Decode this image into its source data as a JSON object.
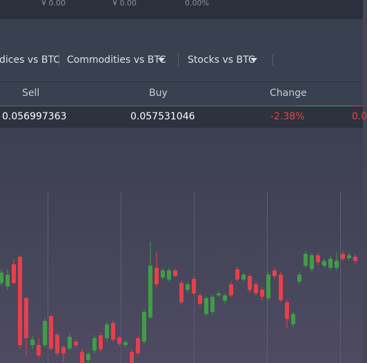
{
  "top_bar": {
    "values": [
      "¥ 0.00",
      "¥ 0.00",
      "0.00%"
    ]
  },
  "tabs": [
    "dices vs BTC",
    "Commodities vs BTC",
    "Stocks vs BTC"
  ],
  "table": {
    "headers": [
      "Sell",
      "Buy",
      "Change"
    ],
    "row": [
      "0.056997363",
      "0.057531046",
      "-2.38%",
      "0.0"
    ]
  },
  "chart": {
    "type": "candlestick",
    "ylim": [
      0,
      341
    ],
    "up_color": "#3f9e45",
    "down_color": "#e8404a",
    "candles": [
      [
        116,
        135,
        112,
        131
      ],
      [
        111,
        136,
        106,
        128
      ],
      [
        143,
        151,
        114,
        116
      ],
      [
        154,
        156,
        21,
        26
      ],
      [
        94,
        96,
        11,
        36
      ],
      [
        26,
        40,
        20,
        34
      ],
      [
        26,
        36,
        6,
        11
      ],
      [
        26,
        65,
        22,
        61
      ],
      [
        68,
        70,
        18,
        21
      ],
      [
        41,
        44,
        10,
        14
      ],
      [
        23,
        26,
        2,
        14
      ],
      [
        21,
        42,
        18,
        38
      ],
      [
        31,
        34,
        22,
        26
      ],
      [
        16,
        20,
        -4,
        0
      ],
      [
        4,
        16,
        0,
        13
      ],
      [
        18,
        40,
        14,
        36
      ],
      [
        40,
        44,
        16,
        20
      ],
      [
        36,
        60,
        30,
        56
      ],
      [
        58,
        62,
        30,
        34
      ],
      [
        37,
        40,
        24,
        28
      ],
      [
        26,
        34,
        22,
        30
      ],
      [
        16,
        20,
        -4,
        0
      ],
      [
        36,
        40,
        10,
        14
      ],
      [
        31,
        78,
        28,
        74
      ],
      [
        66,
        176,
        64,
        141
      ],
      [
        138,
        161,
        110,
        114
      ],
      [
        124,
        138,
        120,
        134
      ],
      [
        121,
        138,
        118,
        134
      ],
      [
        134,
        137,
        124,
        126
      ],
      [
        116,
        120,
        84,
        88
      ],
      [
        106,
        118,
        102,
        114
      ],
      [
        122,
        126,
        98,
        101
      ],
      [
        98,
        101,
        82,
        86
      ],
      [
        71,
        97,
        68,
        94
      ],
      [
        74,
        99,
        70,
        96
      ],
      [
        98,
        104,
        95,
        101
      ],
      [
        90,
        101,
        86,
        98
      ],
      [
        114,
        118,
        95,
        98
      ],
      [
        136,
        140,
        118,
        121
      ],
      [
        121,
        131,
        118,
        128
      ],
      [
        126,
        130,
        102,
        106
      ],
      [
        114,
        118,
        98,
        101
      ],
      [
        106,
        110,
        90,
        96
      ],
      [
        94,
        132,
        90,
        128
      ],
      [
        134,
        138,
        122,
        126
      ],
      [
        128,
        132,
        88,
        91
      ],
      [
        88,
        92,
        50,
        64
      ],
      [
        56,
        75,
        52,
        71
      ],
      [
        118,
        132,
        114,
        128
      ],
      [
        141,
        162,
        138,
        158
      ],
      [
        136,
        160,
        132,
        156
      ],
      [
        156,
        160,
        142,
        146
      ],
      [
        141,
        152,
        138,
        148
      ],
      [
        138,
        155,
        134,
        151
      ],
      [
        138,
        160,
        134,
        148
      ],
      [
        158,
        162,
        148,
        151
      ],
      [
        152,
        160,
        148,
        156
      ],
      [
        154,
        158,
        144,
        148
      ]
    ]
  }
}
